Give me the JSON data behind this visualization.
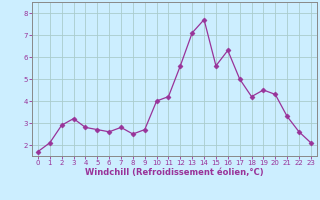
{
  "x": [
    0,
    1,
    2,
    3,
    4,
    5,
    6,
    7,
    8,
    9,
    10,
    11,
    12,
    13,
    14,
    15,
    16,
    17,
    18,
    19,
    20,
    21,
    22,
    23
  ],
  "y": [
    1.7,
    2.1,
    2.9,
    3.2,
    2.8,
    2.7,
    2.6,
    2.8,
    2.5,
    2.7,
    4.0,
    4.2,
    5.6,
    7.1,
    7.7,
    5.6,
    6.3,
    5.0,
    4.2,
    4.5,
    4.3,
    3.3,
    2.6,
    2.1
  ],
  "line_color": "#993399",
  "marker": "D",
  "marker_size": 2.5,
  "bg_color": "#cceeff",
  "grid_color": "#aacccc",
  "xlabel": "Windchill (Refroidissement éolien,°C)",
  "xlabel_color": "#993399",
  "ylim": [
    1.5,
    8.5
  ],
  "xlim": [
    -0.5,
    23.5
  ],
  "yticks": [
    2,
    3,
    4,
    5,
    6,
    7,
    8
  ],
  "xticks": [
    0,
    1,
    2,
    3,
    4,
    5,
    6,
    7,
    8,
    9,
    10,
    11,
    12,
    13,
    14,
    15,
    16,
    17,
    18,
    19,
    20,
    21,
    22,
    23
  ],
  "tick_color": "#993399",
  "tick_fontsize": 5.0,
  "label_fontsize": 6.0,
  "spine_color": "#888888"
}
